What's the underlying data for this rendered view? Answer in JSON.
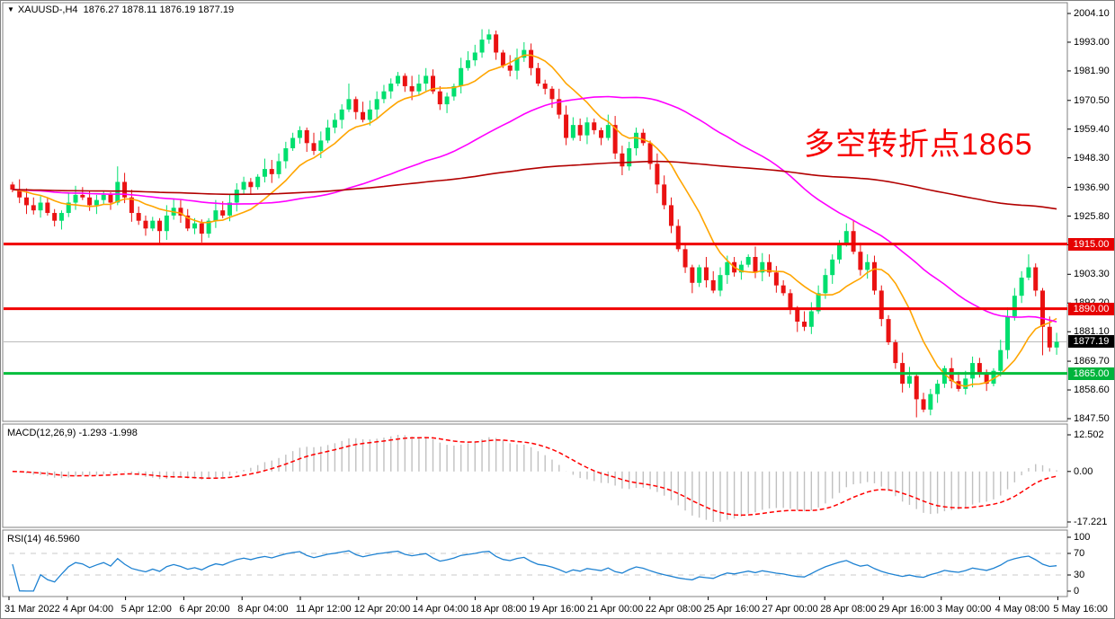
{
  "window": {
    "symbol_dropdown_icon": "▼",
    "symbol": "XAUUSD-,H4",
    "ohlc_quote": "1876.27 1878.11 1876.19 1877.19"
  },
  "annotation": {
    "text": "多空转折点1865",
    "color": "#F70000"
  },
  "price_axis": {
    "ticks": [
      "2004.10",
      "1993.00",
      "1981.90",
      "1970.50",
      "1959.40",
      "1948.30",
      "1936.90",
      "1925.80",
      "1914.70",
      "1903.30",
      "1892.20",
      "1881.10",
      "1869.70",
      "1858.60",
      "1847.50"
    ],
    "badges": [
      {
        "label": "1915.00",
        "price": 1915.0,
        "bg": "#E60000",
        "fg": "#FFFFFF"
      },
      {
        "label": "1890.00",
        "price": 1890.0,
        "bg": "#E60000",
        "fg": "#FFFFFF"
      },
      {
        "label": "1877.19",
        "price": 1877.19,
        "bg": "#000000",
        "fg": "#FFFFFF"
      },
      {
        "label": "1865.00",
        "price": 1865.0,
        "bg": "#00B43C",
        "fg": "#FFFFFF"
      }
    ]
  },
  "panels": {
    "macd": {
      "label": "MACD(12,26,9) -1.293 -1.998",
      "axis": [
        "12.502",
        "0.00",
        "-17.221"
      ]
    },
    "rsi": {
      "label": "RSI(14) 46.5960",
      "axis": [
        "100",
        "70",
        "30",
        "0"
      ]
    }
  },
  "chart_data": {
    "type": "candlestick",
    "title": "XAUUSD-,H4",
    "symbol": "XAUUSD-",
    "timeframe": "H4",
    "current_ohlc": {
      "open": 1876.27,
      "high": 1878.11,
      "low": 1876.19,
      "close": 1877.19
    },
    "ylim": [
      1847.5,
      2004.1
    ],
    "x_labels": [
      "31 Mar 2022",
      "4 Apr 04:00",
      "5 Apr 12:00",
      "6 Apr 20:00",
      "8 Apr 04:00",
      "11 Apr 12:00",
      "12 Apr 20:00",
      "14 Apr 04:00",
      "18 Apr 08:00",
      "19 Apr 16:00",
      "21 Apr 00:00",
      "22 Apr 08:00",
      "25 Apr 16:00",
      "27 Apr 00:00",
      "28 Apr 08:00",
      "29 Apr 16:00",
      "3 May 00:00",
      "4 May 08:00",
      "5 May 16:00"
    ],
    "closes": [
      1936,
      1933,
      1930,
      1928,
      1931,
      1927,
      1924,
      1927,
      1931,
      1934,
      1933,
      1930,
      1932,
      1934,
      1931,
      1939,
      1933,
      1927,
      1924,
      1921,
      1924,
      1920,
      1926,
      1929,
      1926,
      1921,
      1923,
      1919,
      1924,
      1928,
      1926,
      1931,
      1936,
      1939,
      1937,
      1941,
      1944,
      1942,
      1947,
      1952,
      1956,
      1959,
      1954,
      1951,
      1955,
      1960,
      1963,
      1967,
      1971,
      1966,
      1963,
      1967,
      1971,
      1974,
      1977,
      1980,
      1976,
      1974,
      1977,
      1980,
      1974,
      1969,
      1972,
      1976,
      1983,
      1986,
      1989,
      1994,
      1996,
      1989,
      1984,
      1982,
      1987,
      1990,
      1983,
      1977,
      1975,
      1971,
      1965,
      1956,
      1961,
      1957,
      1962,
      1959,
      1956,
      1961,
      1950,
      1945,
      1952,
      1958,
      1954,
      1946,
      1938,
      1930,
      1922,
      1913,
      1906,
      1900,
      1906,
      1901,
      1897,
      1903,
      1908,
      1904,
      1907,
      1910,
      1904,
      1908,
      1904,
      1899,
      1896,
      1890,
      1885,
      1883,
      1889,
      1896,
      1903,
      1909,
      1915,
      1920,
      1912,
      1905,
      1908,
      1897,
      1886,
      1877,
      1869,
      1861,
      1864,
      1855,
      1851,
      1857,
      1861,
      1867,
      1862,
      1859,
      1863,
      1869,
      1865,
      1861,
      1866,
      1874,
      1887,
      1895,
      1902,
      1906,
      1897,
      1883,
      1875,
      1877.19
    ],
    "wick_overrides": {
      "15": [
        6,
        1
      ],
      "21": [
        1,
        5
      ],
      "48": [
        6,
        1
      ],
      "67": [
        4,
        2
      ],
      "97": [
        1,
        4
      ],
      "112": [
        1,
        4
      ],
      "119": [
        3,
        1
      ],
      "129": [
        1,
        7
      ],
      "145": [
        5,
        1
      ],
      "147": [
        1,
        11
      ]
    },
    "moving_averages": [
      {
        "name": "fast",
        "period": 10,
        "color": "#FFA500"
      },
      {
        "name": "medium",
        "period": 45,
        "color": "#FF00FF"
      },
      {
        "name": "slow",
        "period": 140,
        "color": "#B20000"
      }
    ],
    "levels": [
      {
        "price": 1915.0,
        "color": "#F00000",
        "width": 3
      },
      {
        "price": 1890.0,
        "color": "#F00000",
        "width": 3
      },
      {
        "price": 1865.0,
        "color": "#00BE3C",
        "width": 3
      }
    ],
    "current_price": 1877.19,
    "current_price_line_color": "#BBBBBB",
    "macd": {
      "fast": 12,
      "slow": 26,
      "signal": 9,
      "value": -1.293,
      "signal_value": -1.998,
      "ylim": [
        -17.221,
        12.502
      ],
      "hist_color": "#C0C0C0",
      "signal_color": "#FF0000"
    },
    "rsi": {
      "period": 14,
      "value": 46.596,
      "levels": [
        30,
        70
      ],
      "ylim": [
        0,
        100
      ],
      "color": "#1E82D2"
    },
    "colors": {
      "bull": "#00DF6E",
      "bear": "#EA1212"
    },
    "grid": "off",
    "background": "#FFFFFF"
  }
}
